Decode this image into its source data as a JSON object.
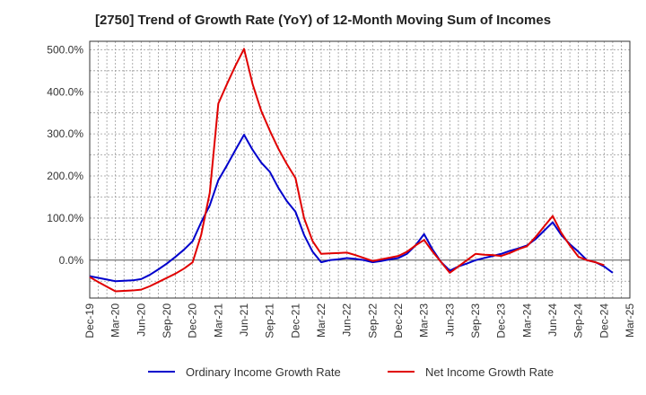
{
  "chart_data": {
    "type": "line",
    "title": "[2750]  Trend of Growth Rate (YoY) of 12-Month Moving Sum of Incomes",
    "xlabel": "",
    "ylabel": "",
    "x_ticks": [
      "Dec-19",
      "Mar-20",
      "Jun-20",
      "Sep-20",
      "Dec-20",
      "Mar-21",
      "Jun-21",
      "Sep-21",
      "Dec-21",
      "Mar-22",
      "Jun-22",
      "Sep-22",
      "Dec-22",
      "Mar-23",
      "Jun-23",
      "Sep-23",
      "Dec-23",
      "Mar-24",
      "Jun-24",
      "Sep-24",
      "Dec-24",
      "Mar-25"
    ],
    "y_ticks": [
      "0.0%",
      "100.0%",
      "200.0%",
      "300.0%",
      "400.0%",
      "500.0%"
    ],
    "y_tick_values": [
      0,
      100,
      200,
      300,
      400,
      500
    ],
    "ylim": [
      -90,
      520
    ],
    "grid": true,
    "legend_position": "bottom",
    "series": [
      {
        "name": "Ordinary Income Growth Rate",
        "color": "#0000cc",
        "points": [
          [
            "Dec-19",
            -38
          ],
          [
            "Jan-20",
            -42
          ],
          [
            "Feb-20",
            -46
          ],
          [
            "Mar-20",
            -50
          ],
          [
            "Apr-20",
            -49
          ],
          [
            "May-20",
            -48
          ],
          [
            "Jun-20",
            -45
          ],
          [
            "Jul-20",
            -35
          ],
          [
            "Aug-20",
            -22
          ],
          [
            "Sep-20",
            -8
          ],
          [
            "Oct-20",
            8
          ],
          [
            "Nov-20",
            25
          ],
          [
            "Dec-20",
            45
          ],
          [
            "Jan-21",
            90
          ],
          [
            "Feb-21",
            130
          ],
          [
            "Mar-21",
            190
          ],
          [
            "Apr-21",
            225
          ],
          [
            "May-21",
            262
          ],
          [
            "Jun-21",
            298
          ],
          [
            "Jul-21",
            262
          ],
          [
            "Aug-21",
            232
          ],
          [
            "Sep-21",
            210
          ],
          [
            "Oct-21",
            172
          ],
          [
            "Nov-21",
            140
          ],
          [
            "Dec-21",
            115
          ],
          [
            "Jan-22",
            60
          ],
          [
            "Feb-22",
            20
          ],
          [
            "Mar-22",
            -5
          ],
          [
            "Apr-22",
            0
          ],
          [
            "May-22",
            2
          ],
          [
            "Jun-22",
            5
          ],
          [
            "Jul-22",
            3
          ],
          [
            "Aug-22",
            0
          ],
          [
            "Sep-22",
            -5
          ],
          [
            "Oct-22",
            -2
          ],
          [
            "Nov-22",
            2
          ],
          [
            "Dec-22",
            5
          ],
          [
            "Jan-23",
            15
          ],
          [
            "Feb-23",
            35
          ],
          [
            "Mar-23",
            62
          ],
          [
            "Apr-23",
            25
          ],
          [
            "May-23",
            -5
          ],
          [
            "Jun-23",
            -25
          ],
          [
            "Jul-23",
            -15
          ],
          [
            "Aug-23",
            -8
          ],
          [
            "Sep-23",
            0
          ],
          [
            "Oct-23",
            5
          ],
          [
            "Nov-23",
            10
          ],
          [
            "Dec-23",
            15
          ],
          [
            "Jan-24",
            22
          ],
          [
            "Feb-24",
            28
          ],
          [
            "Mar-24",
            35
          ],
          [
            "Apr-24",
            50
          ],
          [
            "May-24",
            70
          ],
          [
            "Jun-24",
            90
          ],
          [
            "Jul-24",
            60
          ],
          [
            "Aug-24",
            38
          ],
          [
            "Sep-24",
            20
          ],
          [
            "Oct-24",
            0
          ],
          [
            "Nov-24",
            -5
          ],
          [
            "Dec-24",
            -15
          ],
          [
            "Jan-25",
            -30
          ]
        ]
      },
      {
        "name": "Net Income Growth Rate",
        "color": "#e00000",
        "points": [
          [
            "Dec-19",
            -40
          ],
          [
            "Jan-20",
            -52
          ],
          [
            "Feb-20",
            -63
          ],
          [
            "Mar-20",
            -74
          ],
          [
            "Apr-20",
            -73
          ],
          [
            "May-20",
            -72
          ],
          [
            "Jun-20",
            -70
          ],
          [
            "Jul-20",
            -62
          ],
          [
            "Aug-20",
            -52
          ],
          [
            "Sep-20",
            -42
          ],
          [
            "Oct-20",
            -32
          ],
          [
            "Nov-20",
            -20
          ],
          [
            "Dec-20",
            -5
          ],
          [
            "Jan-21",
            60
          ],
          [
            "Feb-21",
            160
          ],
          [
            "Mar-21",
            372
          ],
          [
            "Apr-21",
            418
          ],
          [
            "May-21",
            462
          ],
          [
            "Jun-21",
            502
          ],
          [
            "Jul-21",
            418
          ],
          [
            "Aug-21",
            355
          ],
          [
            "Sep-21",
            308
          ],
          [
            "Oct-21",
            265
          ],
          [
            "Nov-21",
            228
          ],
          [
            "Dec-21",
            195
          ],
          [
            "Jan-22",
            100
          ],
          [
            "Feb-22",
            45
          ],
          [
            "Mar-22",
            15
          ],
          [
            "Apr-22",
            16
          ],
          [
            "May-22",
            17
          ],
          [
            "Jun-22",
            18
          ],
          [
            "Jul-22",
            12
          ],
          [
            "Aug-22",
            5
          ],
          [
            "Sep-22",
            -2
          ],
          [
            "Oct-22",
            2
          ],
          [
            "Nov-22",
            6
          ],
          [
            "Dec-22",
            10
          ],
          [
            "Jan-23",
            20
          ],
          [
            "Feb-23",
            35
          ],
          [
            "Mar-23",
            48
          ],
          [
            "Apr-23",
            20
          ],
          [
            "May-23",
            -5
          ],
          [
            "Jun-23",
            -30
          ],
          [
            "Jul-23",
            -15
          ],
          [
            "Aug-23",
            0
          ],
          [
            "Sep-23",
            15
          ],
          [
            "Oct-23",
            13
          ],
          [
            "Nov-23",
            12
          ],
          [
            "Dec-23",
            10
          ],
          [
            "Jan-24",
            17
          ],
          [
            "Feb-24",
            26
          ],
          [
            "Mar-24",
            33
          ],
          [
            "Apr-24",
            55
          ],
          [
            "May-24",
            80
          ],
          [
            "Jun-24",
            105
          ],
          [
            "Jul-24",
            65
          ],
          [
            "Aug-24",
            35
          ],
          [
            "Sep-24",
            8
          ],
          [
            "Oct-24",
            0
          ],
          [
            "Nov-24",
            -5
          ],
          [
            "Dec-24",
            -12
          ]
        ]
      }
    ]
  }
}
